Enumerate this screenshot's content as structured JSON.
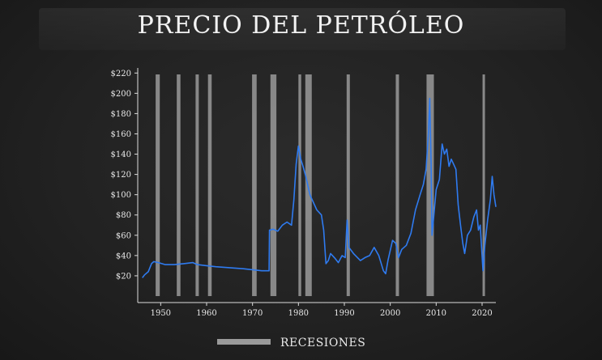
{
  "header": {
    "title": "PRECIO DEL PETRÓLEO"
  },
  "legend": {
    "recessions_label": "RECESIONES"
  },
  "colors": {
    "line": "#2f7bf0",
    "recession": "#9a9a9a",
    "axis": "#dcdcdc",
    "background": "#222222"
  },
  "chart_data": {
    "type": "line",
    "title": "PRECIO DEL PETRÓLEO",
    "xlabel": "",
    "ylabel": "",
    "xlim": [
      1945,
      2023
    ],
    "ylim": [
      0,
      225
    ],
    "x_ticks": [
      1950,
      1960,
      1970,
      1980,
      1990,
      2000,
      2010,
      2020
    ],
    "y_ticks": [
      20,
      40,
      60,
      80,
      100,
      120,
      140,
      160,
      180,
      200,
      220
    ],
    "y_tick_labels": [
      "$20",
      "$40",
      "$60",
      "$80",
      "$100",
      "$120",
      "$140",
      "$160",
      "$180",
      "$200",
      "$220"
    ],
    "x_tick_labels": [
      "1950",
      "1960",
      "1970",
      "1980",
      "1990",
      "2000",
      "2010",
      "2020"
    ],
    "grid": false,
    "legend_position": "bottom-center",
    "recessions": [
      [
        1948.9,
        1949.8
      ],
      [
        1953.5,
        1954.3
      ],
      [
        1957.6,
        1958.3
      ],
      [
        1960.3,
        1961.1
      ],
      [
        1969.9,
        1970.9
      ],
      [
        1973.9,
        1975.2
      ],
      [
        1980.0,
        1980.6
      ],
      [
        1981.5,
        1982.9
      ],
      [
        1990.5,
        1991.2
      ],
      [
        2001.2,
        2001.9
      ],
      [
        2007.9,
        2009.5
      ],
      [
        2020.1,
        2020.4
      ]
    ],
    "series": [
      {
        "values": [
          [
            1946,
            18
          ],
          [
            1946.5,
            21
          ],
          [
            1947.3,
            24
          ],
          [
            1948,
            32
          ],
          [
            1948.5,
            34
          ],
          [
            1949.5,
            33
          ],
          [
            1951,
            31
          ],
          [
            1953,
            31
          ],
          [
            1955,
            32
          ],
          [
            1957,
            33
          ],
          [
            1958,
            31
          ],
          [
            1960,
            30
          ],
          [
            1962,
            29
          ],
          [
            1965,
            28
          ],
          [
            1968,
            27
          ],
          [
            1970,
            26
          ],
          [
            1972,
            25
          ],
          [
            1973.6,
            25
          ],
          [
            1973.7,
            65
          ],
          [
            1974.5,
            66
          ],
          [
            1975.5,
            64
          ],
          [
            1976.5,
            70
          ],
          [
            1977.5,
            73
          ],
          [
            1978.5,
            70
          ],
          [
            1979,
            95
          ],
          [
            1979.5,
            130
          ],
          [
            1980,
            148
          ],
          [
            1980.5,
            135
          ],
          [
            1981,
            128
          ],
          [
            1981.5,
            120
          ],
          [
            1982,
            110
          ],
          [
            1982.5,
            100
          ],
          [
            1983,
            95
          ],
          [
            1984,
            85
          ],
          [
            1985,
            80
          ],
          [
            1985.5,
            65
          ],
          [
            1986,
            32
          ],
          [
            1986.5,
            35
          ],
          [
            1987,
            42
          ],
          [
            1988,
            37
          ],
          [
            1988.7,
            33
          ],
          [
            1989.5,
            40
          ],
          [
            1990.2,
            38
          ],
          [
            1990.6,
            75
          ],
          [
            1991,
            48
          ],
          [
            1992,
            42
          ],
          [
            1993.5,
            35
          ],
          [
            1994.5,
            38
          ],
          [
            1995.5,
            40
          ],
          [
            1996.5,
            48
          ],
          [
            1997.5,
            40
          ],
          [
            1998.5,
            25
          ],
          [
            1999,
            22
          ],
          [
            1999.5,
            35
          ],
          [
            2000.5,
            55
          ],
          [
            2001.2,
            52
          ],
          [
            2001.8,
            38
          ],
          [
            2002.5,
            46
          ],
          [
            2003.5,
            50
          ],
          [
            2004.5,
            62
          ],
          [
            2005.5,
            85
          ],
          [
            2006.5,
            100
          ],
          [
            2007.2,
            110
          ],
          [
            2007.8,
            125
          ],
          [
            2008.3,
            160
          ],
          [
            2008.6,
            195
          ],
          [
            2008.9,
            130
          ],
          [
            2009.1,
            60
          ],
          [
            2009.5,
            80
          ],
          [
            2010,
            105
          ],
          [
            2010.7,
            115
          ],
          [
            2011.3,
            150
          ],
          [
            2011.8,
            140
          ],
          [
            2012.3,
            145
          ],
          [
            2012.8,
            128
          ],
          [
            2013.3,
            135
          ],
          [
            2013.8,
            130
          ],
          [
            2014.3,
            125
          ],
          [
            2014.8,
            90
          ],
          [
            2015.3,
            70
          ],
          [
            2015.8,
            52
          ],
          [
            2016.2,
            42
          ],
          [
            2016.8,
            60
          ],
          [
            2017.5,
            65
          ],
          [
            2018.2,
            78
          ],
          [
            2018.8,
            85
          ],
          [
            2019.2,
            65
          ],
          [
            2019.6,
            70
          ],
          [
            2020.2,
            25
          ],
          [
            2020.6,
            50
          ],
          [
            2021.2,
            75
          ],
          [
            2021.8,
            95
          ],
          [
            2022.2,
            118
          ],
          [
            2022.6,
            100
          ],
          [
            2023,
            88
          ]
        ]
      }
    ]
  }
}
